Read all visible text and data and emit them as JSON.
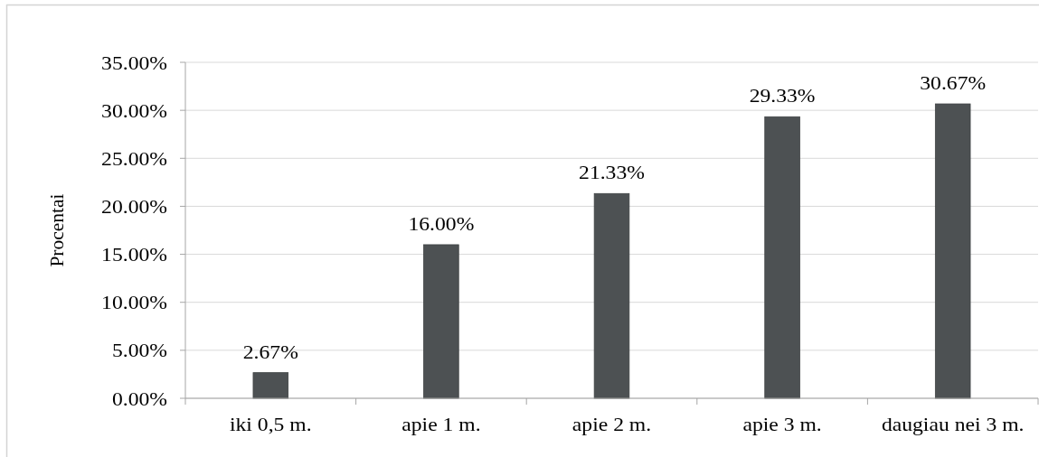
{
  "chart_data": {
    "type": "bar",
    "ylabel": "Procentai",
    "categories": [
      "iki 0,5 m.",
      "apie 1 m.",
      "apie 2 m.",
      "apie 3 m.",
      "daugiau nei 3 m."
    ],
    "values": [
      2.67,
      16.0,
      21.33,
      29.33,
      30.67
    ],
    "value_labels": [
      "2.67%",
      "16.00%",
      "21.33%",
      "29.33%",
      "30.67%"
    ],
    "color": "#4d5153",
    "ylim": [
      0,
      35
    ],
    "yticks": [
      {
        "value": 0,
        "label": "0.00%"
      },
      {
        "value": 5,
        "label": "5.00%"
      },
      {
        "value": 10,
        "label": "10.00%"
      },
      {
        "value": 15,
        "label": "15.00%"
      },
      {
        "value": 20,
        "label": "20.00%"
      },
      {
        "value": 25,
        "label": "25.00%"
      },
      {
        "value": 30,
        "label": "30.00%"
      },
      {
        "value": 35,
        "label": "35.00%"
      }
    ],
    "grid": "y"
  }
}
